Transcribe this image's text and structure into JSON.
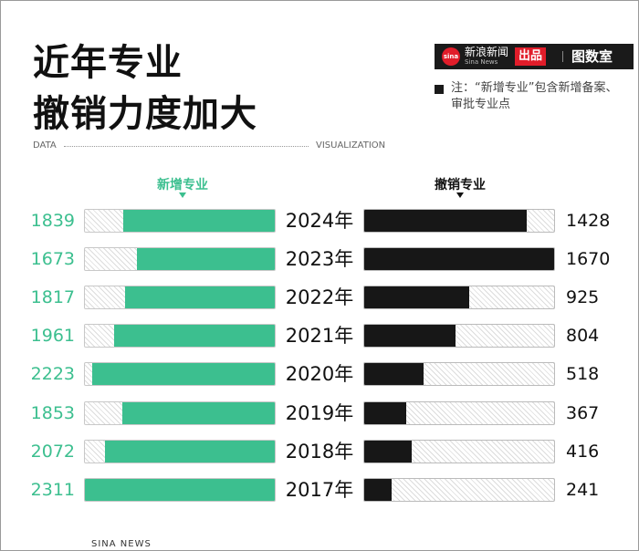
{
  "header": {
    "title_line1": "近年专业",
    "title_line2": "撤销力度加大",
    "label_left": "DATA",
    "label_right": "VISUALIZATION",
    "brand_logo_text": "sina",
    "brand_name": "新浪新闻",
    "brand_name_en": "Sina News",
    "brand_badge": "出品",
    "brand_partner": "图数室",
    "note": "注：“新增专业”包含新增备案、审批专业点"
  },
  "colors": {
    "new_programs": "#3cbf8f",
    "revoked_programs": "#171717"
  },
  "footer": "SINA NEWS",
  "chart_data": {
    "type": "bar",
    "categories": [
      "2024年",
      "2023年",
      "2022年",
      "2021年",
      "2020年",
      "2019年",
      "2018年",
      "2017年"
    ],
    "series": [
      {
        "name": "新增专业",
        "values": [
          1839,
          1673,
          1817,
          1961,
          2223,
          1853,
          2072,
          2311
        ]
      },
      {
        "name": "撤销专业",
        "values": [
          1428,
          1670,
          925,
          804,
          518,
          367,
          416,
          241
        ]
      }
    ],
    "series_max": [
      2311,
      1670
    ]
  }
}
